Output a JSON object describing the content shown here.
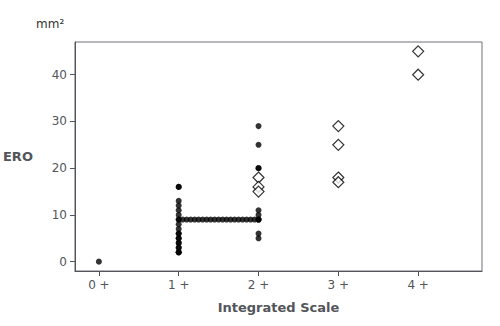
{
  "chart_data": {
    "type": "scatter",
    "xlabel": "Integrated Scale",
    "ylabel": "ERO",
    "annotations": [
      "mm²"
    ],
    "xlim": [
      -0.3,
      4.8
    ],
    "ylim": [
      -2,
      47
    ],
    "xticks": [
      {
        "value": 0,
        "label": "0 +"
      },
      {
        "value": 1,
        "label": "1 +"
      },
      {
        "value": 2,
        "label": "2 +"
      },
      {
        "value": 3,
        "label": "3 +"
      },
      {
        "value": 4,
        "label": "4 +"
      }
    ],
    "yticks": [
      0,
      10,
      20,
      30,
      40
    ],
    "grid": false,
    "series": [
      {
        "type": "scatter",
        "marker": "circle",
        "color": "#000000",
        "x": [
          0,
          1.0,
          1.0,
          1.0,
          1.0,
          1.0,
          1.0,
          1.0,
          1.0,
          1.0,
          1.0,
          1.05,
          1.1,
          1.15,
          1.2,
          1.25,
          1.3,
          1.35,
          1.4,
          1.45,
          1.5,
          1.55,
          1.6,
          1.65,
          1.7,
          1.75,
          1.8,
          1.85,
          1.9,
          1.95,
          2.0,
          1.0,
          1.0,
          1.0,
          1.0,
          1.0,
          1.0,
          1.0,
          1.0,
          1.0,
          1.0,
          1.0,
          2.0,
          2.0,
          2.0,
          2.0,
          2.0,
          2.0,
          2.0,
          2.0,
          2.0,
          2.0
        ],
        "values": [
          0,
          16,
          16,
          13,
          12,
          11,
          10,
          9,
          9,
          8,
          7,
          9,
          9,
          9,
          9,
          9,
          9,
          9,
          9,
          9,
          9,
          9,
          9,
          9,
          9,
          9,
          9,
          9,
          9,
          9,
          9,
          6,
          6,
          5,
          5,
          4,
          4,
          3,
          3,
          2,
          2,
          2,
          29,
          25,
          20,
          20,
          11,
          10,
          9,
          9,
          6,
          5
        ]
      },
      {
        "type": "scatter",
        "marker": "open_diamond",
        "color": "#000000",
        "x": [
          2,
          2,
          2,
          3,
          3,
          3,
          3,
          4,
          4
        ],
        "values": [
          18,
          16,
          15,
          29,
          25,
          18,
          17,
          45,
          40
        ]
      }
    ]
  }
}
